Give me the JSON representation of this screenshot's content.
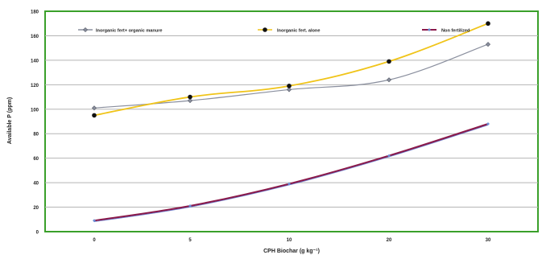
{
  "chart_data": {
    "type": "line",
    "title": "",
    "xlabel": "CPH Biochar (g kg⁻¹)",
    "ylabel": "Available P (ppm)",
    "categories": [
      "0",
      "5",
      "10",
      "20",
      "30"
    ],
    "ylim": [
      0,
      180
    ],
    "yticks": [
      "0",
      "20",
      "40",
      "60",
      "80",
      "100",
      "120",
      "140",
      "160",
      "180"
    ],
    "grid": true,
    "legend_position": "top",
    "series": [
      {
        "name": "Inorganic fert+ organic manure",
        "values": [
          101,
          107,
          116,
          124,
          153
        ],
        "color": "#8a8f9e",
        "marker": "diamond"
      },
      {
        "name": "Inorganic fert. alone",
        "values": [
          95,
          110,
          119,
          139,
          170
        ],
        "color": "#f0c419",
        "marker": "dot"
      },
      {
        "name": "Non fertilized",
        "values": [
          9,
          21,
          39,
          62,
          88
        ],
        "color": "#8b1a4a",
        "marker": "small-diamond"
      }
    ]
  }
}
